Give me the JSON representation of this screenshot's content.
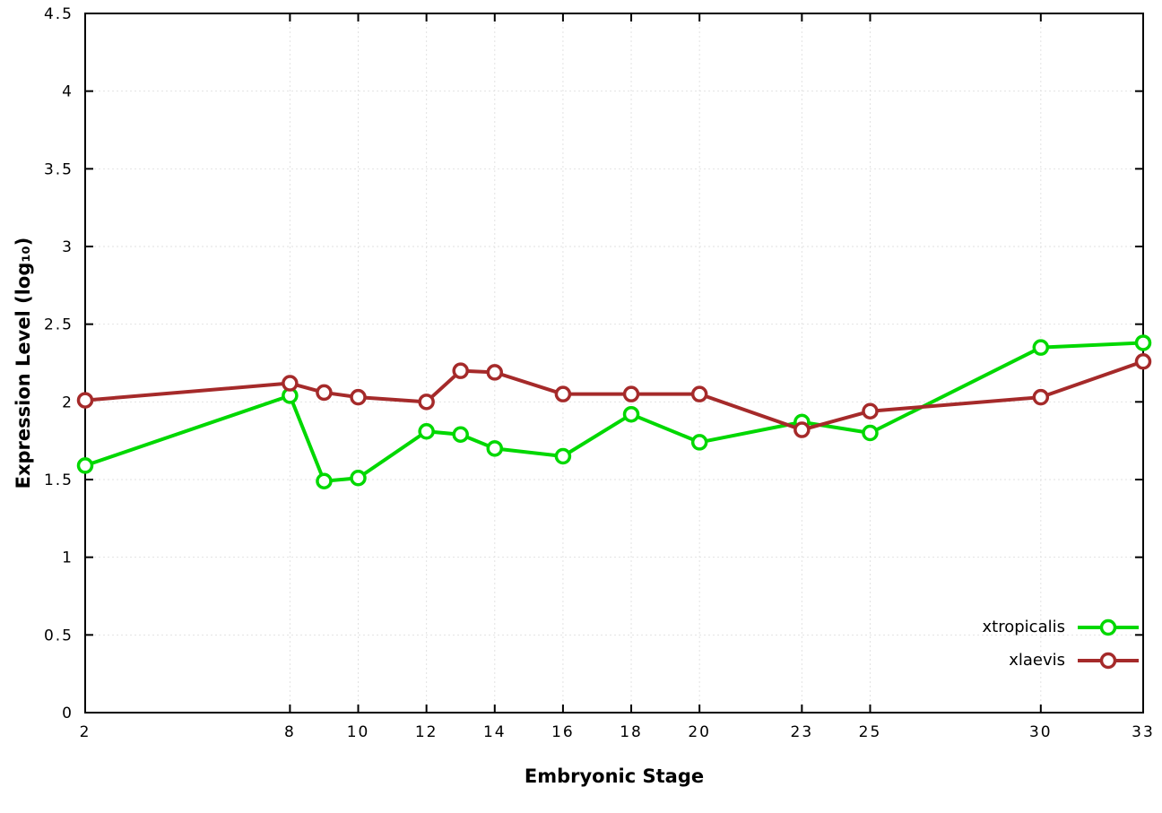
{
  "chart_data": {
    "type": "line",
    "title": "",
    "xlabel": "Embryonic Stage",
    "ylabel": "Expression Level (log₁₀)",
    "x": [
      2,
      8,
      9,
      10,
      12,
      13,
      14,
      16,
      18,
      20,
      23,
      25,
      30,
      33
    ],
    "xtick_labels": [
      2,
      8,
      10,
      12,
      14,
      16,
      18,
      20,
      23,
      25,
      30,
      33
    ],
    "xlim": [
      2,
      33
    ],
    "ylim": [
      0,
      4.5
    ],
    "yticks": [
      0,
      0.5,
      1,
      1.5,
      2,
      2.5,
      3,
      3.5,
      4,
      4.5
    ],
    "grid": true,
    "legend_position": "bottom-right",
    "series": [
      {
        "name": "xtropicalis",
        "color": "#00d800",
        "marker": "open-circle",
        "values": [
          1.59,
          2.04,
          1.49,
          1.51,
          1.81,
          1.79,
          1.7,
          1.65,
          1.92,
          1.74,
          1.87,
          1.8,
          2.35,
          2.38
        ]
      },
      {
        "name": "xlaevis",
        "color": "#a52a2a",
        "marker": "open-circle",
        "values": [
          2.01,
          2.12,
          2.06,
          2.03,
          2.0,
          2.2,
          2.19,
          2.05,
          2.05,
          2.05,
          1.82,
          1.94,
          2.03,
          2.26
        ]
      }
    ],
    "colors": {
      "grid": "#e2e2e2",
      "border": "#000000",
      "background": "#ffffff"
    }
  }
}
